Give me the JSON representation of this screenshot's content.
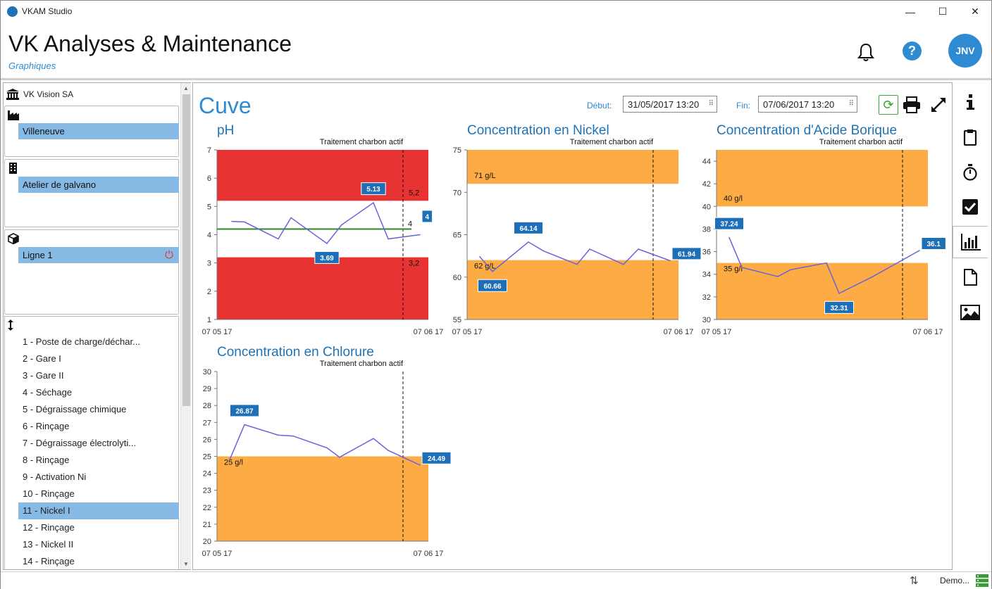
{
  "window": {
    "title": "VKAM Studio",
    "min": "—",
    "max": "☐",
    "close": "✕"
  },
  "header": {
    "title": "VK Analyses & Maintenance",
    "subtitle": "Graphiques",
    "avatar": "JNV"
  },
  "sidebar": {
    "org": "VK Vision SA",
    "site": "Villeneuve",
    "workshop": "Atelier de galvano",
    "line": "Ligne 1",
    "stations": [
      "1 - Poste de charge/déchar...",
      "2 - Gare I",
      "3 - Gare II",
      "4 - Séchage",
      "5 - Dégraissage chimique",
      "6 - Rinçage",
      "7 - Dégraissage électrolyti...",
      "8 - Rinçage",
      "9 - Activation Ni",
      "10 - Rinçage",
      "11 - Nickel I",
      "12 - Rinçage",
      "13 - Nickel II",
      "14 - Rinçage"
    ],
    "active_station_index": 10
  },
  "main": {
    "title": "Cuve",
    "debut_label": "Début:",
    "debut_value": "31/05/2017 13:20",
    "fin_label": "Fin:",
    "fin_value": "07/06/2017 13:20"
  },
  "colors": {
    "accent": "#2e8ad1",
    "red_zone": "#e83333",
    "orange_zone": "#fdab45",
    "line": "#6a63d9",
    "ph_ref": "#2a8a2a",
    "label_bg": "#1d6fb8"
  },
  "chart_data": [
    {
      "type": "line",
      "title": "pH",
      "annotation": "Traitement charbon actif",
      "ylim": [
        1,
        7
      ],
      "yticks": [
        "1",
        "2",
        "3",
        "4",
        "5",
        "6",
        "7"
      ],
      "xticks": [
        "07 05 17",
        "07 06 17"
      ],
      "zones": [
        {
          "from": 5.2,
          "to": 7,
          "color": "red"
        },
        {
          "from": 1,
          "to": 3.2,
          "color": "red"
        }
      ],
      "zone_labels": [
        "5,2",
        "3,2"
      ],
      "reference_line": 4.2,
      "reference_side_label": "4",
      "marker_fraction": 0.88,
      "points": [
        [
          0.07,
          4.47
        ],
        [
          0.13,
          4.45
        ],
        [
          0.29,
          3.85
        ],
        [
          0.35,
          4.6
        ],
        [
          0.52,
          3.69
        ],
        [
          0.59,
          4.35
        ],
        [
          0.74,
          5.13
        ],
        [
          0.81,
          3.85
        ],
        [
          0.96,
          4.0
        ]
      ],
      "labels": [
        {
          "text": "5.13",
          "at": [
            0.74,
            5.13
          ],
          "pos": "above"
        },
        {
          "text": "3.69",
          "at": [
            0.52,
            3.69
          ],
          "pos": "below"
        },
        {
          "text": "4",
          "at": [
            1.0,
            4.4
          ],
          "pos": "edge"
        }
      ]
    },
    {
      "type": "line",
      "title": "Concentration en Nickel",
      "annotation": "Traitement charbon actif",
      "ylim": [
        55,
        75
      ],
      "yticks": [
        "55",
        "60",
        "65",
        "70",
        "75"
      ],
      "xticks": [
        "07 05 17",
        "07 06 17"
      ],
      "zones": [
        {
          "from": 71,
          "to": 75,
          "color": "orange"
        },
        {
          "from": 55,
          "to": 62,
          "color": "orange"
        }
      ],
      "zone_labels": [
        "71 g/L",
        "62 g/L"
      ],
      "marker_fraction": 0.88,
      "points": [
        [
          0.06,
          62.4
        ],
        [
          0.12,
          60.66
        ],
        [
          0.29,
          64.14
        ],
        [
          0.36,
          63.1
        ],
        [
          0.52,
          61.5
        ],
        [
          0.58,
          63.3
        ],
        [
          0.74,
          61.5
        ],
        [
          0.81,
          63.3
        ],
        [
          0.96,
          61.94
        ]
      ],
      "labels": [
        {
          "text": "64.14",
          "at": [
            0.29,
            64.14
          ],
          "pos": "above"
        },
        {
          "text": "60.66",
          "at": [
            0.12,
            60.66
          ],
          "pos": "below"
        },
        {
          "text": "61.94",
          "at": [
            0.96,
            61.94
          ],
          "pos": "edge"
        }
      ]
    },
    {
      "type": "line",
      "title": "Concentration d'Acide Borique",
      "annotation": "Traitement charbon actif",
      "ylim": [
        30,
        45
      ],
      "yticks": [
        "30",
        "32",
        "34",
        "36",
        "38",
        "40",
        "42",
        "44"
      ],
      "xticks": [
        "07 05 17",
        "07 06 17"
      ],
      "zones": [
        {
          "from": 40,
          "to": 45,
          "color": "orange"
        },
        {
          "from": 30,
          "to": 35,
          "color": "orange"
        }
      ],
      "zone_labels": [
        "40 g/l",
        "35 g/l"
      ],
      "marker_fraction": 0.88,
      "points": [
        [
          0.06,
          37.24
        ],
        [
          0.12,
          34.6
        ],
        [
          0.29,
          33.8
        ],
        [
          0.35,
          34.4
        ],
        [
          0.52,
          35.0
        ],
        [
          0.58,
          32.31
        ],
        [
          0.74,
          33.8
        ],
        [
          0.96,
          36.1
        ]
      ],
      "labels": [
        {
          "text": "37.24",
          "at": [
            0.06,
            37.24
          ],
          "pos": "above"
        },
        {
          "text": "32.31",
          "at": [
            0.58,
            32.31
          ],
          "pos": "below"
        },
        {
          "text": "36.1",
          "at": [
            0.96,
            36.1
          ],
          "pos": "edge"
        }
      ]
    },
    {
      "type": "line",
      "title": "Concentration en Chlorure",
      "annotation": "Traitement charbon actif",
      "ylim": [
        20,
        30
      ],
      "yticks": [
        "20",
        "21",
        "22",
        "23",
        "24",
        "25",
        "26",
        "27",
        "28",
        "29",
        "30"
      ],
      "xticks": [
        "07 05 17",
        "07 06 17"
      ],
      "zones": [
        {
          "from": 20,
          "to": 25,
          "color": "orange"
        }
      ],
      "zone_labels": [
        "25 g/l"
      ],
      "marker_fraction": 0.88,
      "points": [
        [
          0.06,
          24.8
        ],
        [
          0.13,
          26.87
        ],
        [
          0.29,
          26.25
        ],
        [
          0.36,
          26.2
        ],
        [
          0.52,
          25.5
        ],
        [
          0.58,
          24.95
        ],
        [
          0.74,
          26.05
        ],
        [
          0.81,
          25.35
        ],
        [
          0.96,
          24.49
        ]
      ],
      "labels": [
        {
          "text": "26.87",
          "at": [
            0.13,
            26.87
          ],
          "pos": "above"
        },
        {
          "text": "24.49",
          "at": [
            0.96,
            24.49
          ],
          "pos": "edge"
        }
      ]
    }
  ]
}
